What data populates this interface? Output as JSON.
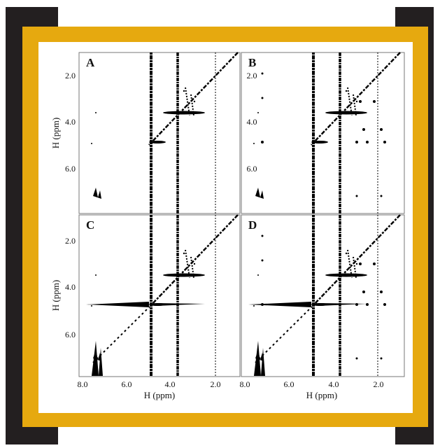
{
  "panels": [
    {
      "label": "A"
    },
    {
      "label": "B"
    },
    {
      "label": "C"
    },
    {
      "label": "D"
    }
  ],
  "y_axis": {
    "label": "H (ppm)",
    "ticks": [
      "2.0",
      "4.0",
      "6.0"
    ]
  },
  "x_axis": {
    "label": "H (ppm)",
    "ticks": [
      "8.0",
      "6.0",
      "4.0",
      "2.0"
    ]
  }
}
